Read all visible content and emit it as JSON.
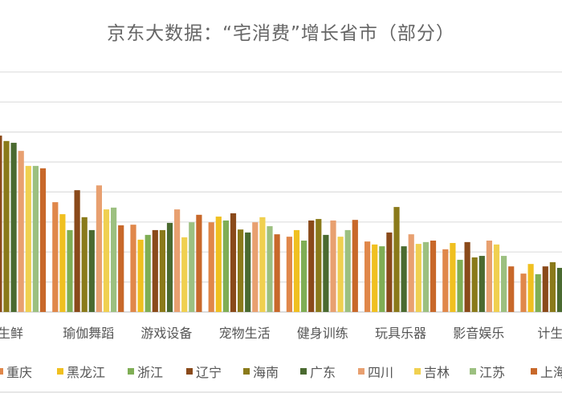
{
  "chart_data": {
    "type": "bar",
    "title": "京东大数据：“宅消费”增长省市（部分）",
    "xlabel": "",
    "ylabel": "",
    "ylim": [
      0,
      8
    ],
    "grid": true,
    "legend_position": "bottom",
    "categories": [
      "生鲜",
      "瑜伽舞蹈",
      "游戏设备",
      "宠物生活",
      "健身训练",
      "玩具乐器",
      "影音娱乐",
      "计生情"
    ],
    "series": [
      {
        "name": "重庆",
        "color": "#e0874a",
        "values": [
          null,
          3.66,
          2.91,
          2.99,
          2.51,
          2.35,
          2.09,
          1.28
        ]
      },
      {
        "name": "黑龙江",
        "color": "#f0c020",
        "values": [
          null,
          3.26,
          2.41,
          3.18,
          2.73,
          2.25,
          2.3,
          1.6
        ]
      },
      {
        "name": "浙江",
        "color": "#7fae55",
        "values": [
          null,
          2.73,
          2.57,
          3.05,
          2.38,
          2.19,
          1.74,
          1.26
        ]
      },
      {
        "name": "辽宁",
        "color": "#8a4a1a",
        "values": [
          5.88,
          4.06,
          2.73,
          3.29,
          3.05,
          2.65,
          2.33,
          1.52
        ]
      },
      {
        "name": "海南",
        "color": "#8a7a1a",
        "values": [
          5.7,
          3.16,
          2.73,
          2.75,
          3.1,
          3.5,
          1.82,
          1.66
        ]
      },
      {
        "name": "广东",
        "color": "#4a6a30",
        "values": [
          5.64,
          2.73,
          2.97,
          2.65,
          2.57,
          2.19,
          1.87,
          1.47
        ]
      },
      {
        "name": "四川",
        "color": "#e8a070",
        "values": [
          5.37,
          4.22,
          3.42,
          2.99,
          3.05,
          2.59,
          2.38,
          null
        ]
      },
      {
        "name": "吉林",
        "color": "#f0d050",
        "values": [
          4.87,
          3.42,
          2.49,
          3.16,
          2.51,
          2.27,
          2.25,
          null
        ]
      },
      {
        "name": "江苏",
        "color": "#9cc080",
        "values": [
          4.87,
          3.48,
          2.99,
          2.86,
          2.73,
          2.33,
          1.87,
          null
        ]
      },
      {
        "name": "上海",
        "color": "#c8682a",
        "values": [
          4.79,
          2.89,
          3.24,
          2.59,
          3.07,
          2.38,
          1.52,
          null
        ]
      }
    ]
  }
}
